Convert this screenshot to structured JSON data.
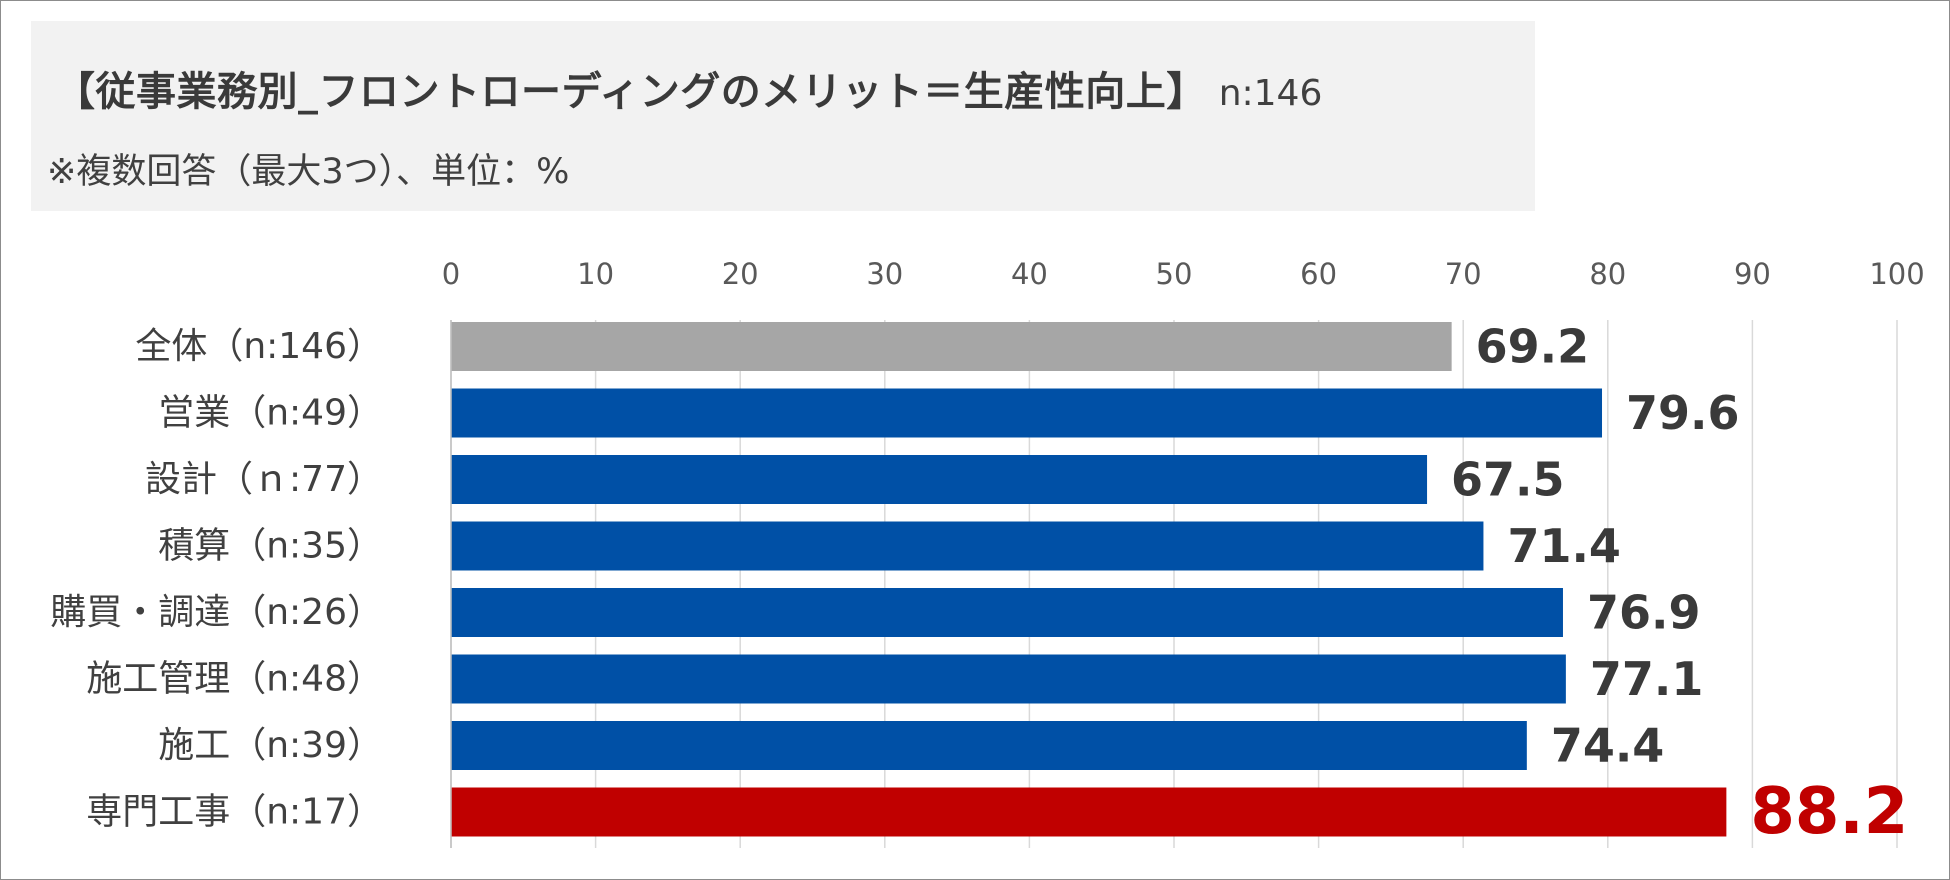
{
  "header": {
    "title": "【従事業務別_フロントローディングのメリット＝生産性向上】",
    "sample": "n:146",
    "note": "※複数回答（最大3つ）、単位：%"
  },
  "chart_data": {
    "type": "bar",
    "orientation": "horizontal",
    "title": "【従事業務別_フロントローディングのメリット＝生産性向上】",
    "subtitle": "※複数回答（最大3つ）、単位：%",
    "categories": [
      "全体（n:146）",
      "営業（n:49）",
      "設計（ｎ:77）",
      "積算（n:35）",
      "購買・調達（n:26）",
      "施工管理（n:48）",
      "施工（n:39）",
      "専門工事（n:17）"
    ],
    "values": [
      69.2,
      79.6,
      67.5,
      71.4,
      76.9,
      77.1,
      74.4,
      88.2
    ],
    "value_labels": [
      "69.2",
      "79.6",
      "67.5",
      "71.4",
      "76.9",
      "77.1",
      "74.4",
      "88.2"
    ],
    "bar_colors": [
      "#a6a6a6",
      "#0050a6",
      "#0050a6",
      "#0050a6",
      "#0050a6",
      "#0050a6",
      "#0050a6",
      "#c00000"
    ],
    "highlight_color": "#c00000",
    "xlim": [
      0,
      100
    ],
    "xticks": [
      0,
      10,
      20,
      30,
      40,
      50,
      60,
      70,
      80,
      90,
      100
    ],
    "x_axis_position": "top",
    "grid": true,
    "legend": false
  }
}
